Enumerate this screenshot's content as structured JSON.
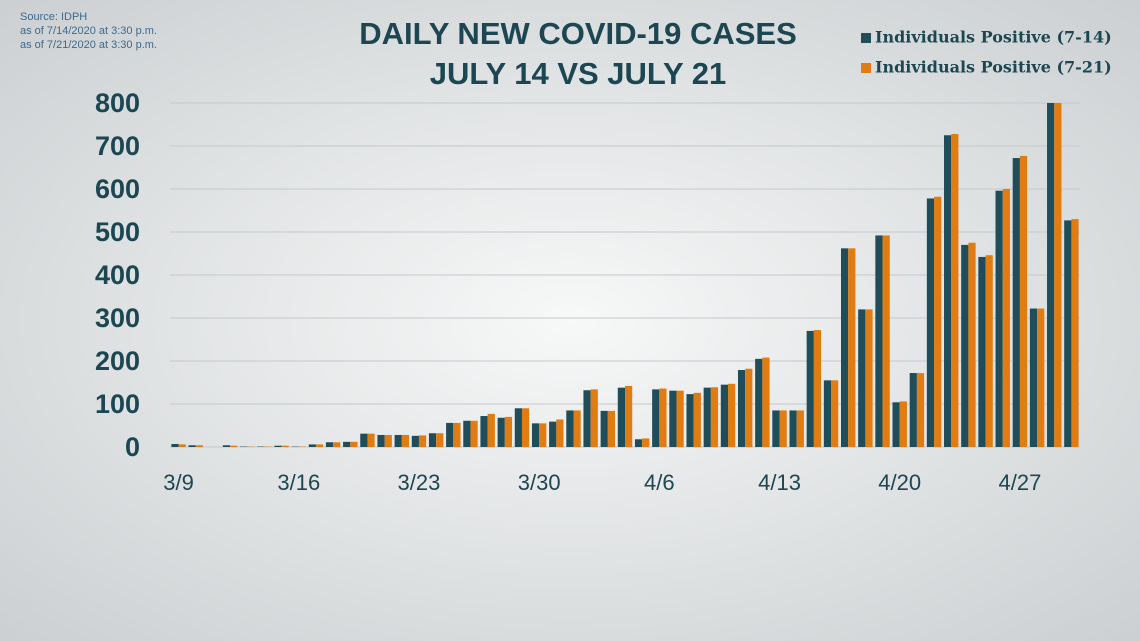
{
  "chart_data": {
    "type": "bar",
    "title": "DAILY NEW COVID-19 CASES",
    "subtitle": "JULY 14 VS JULY 21",
    "source_lines": [
      "Source: IDPH",
      "as of 7/14/2020 at 3:30 p.m.",
      "as of 7/21/2020 at 3:30 p.m."
    ],
    "categories": [
      "3/9",
      null,
      null,
      null,
      null,
      null,
      null,
      "3/16",
      null,
      null,
      null,
      null,
      null,
      null,
      "3/23",
      null,
      null,
      null,
      null,
      null,
      null,
      "3/30",
      null,
      null,
      null,
      null,
      null,
      null,
      "4/6",
      null,
      null,
      null,
      null,
      null,
      null,
      "4/13",
      null,
      null,
      null,
      null,
      null,
      null,
      "4/20",
      null,
      null,
      null,
      null,
      null,
      null,
      "4/27",
      null,
      null,
      null
    ],
    "series": [
      {
        "name": "Individuals Positive (7-14)",
        "color": "#1f4d59",
        "values": [
          7,
          4,
          0,
          4,
          1,
          1,
          3,
          1,
          6,
          11,
          12,
          31,
          28,
          28,
          26,
          32,
          56,
          61,
          72,
          68,
          90,
          55,
          59,
          85,
          132,
          84,
          138,
          18,
          134,
          131,
          123,
          138,
          145,
          179,
          205,
          85,
          85,
          270,
          155,
          462,
          320,
          492,
          104,
          172,
          578,
          725,
          470,
          442,
          596,
          672,
          322,
          800,
          527
        ]
      },
      {
        "name": "Individuals Positive (7-21)",
        "color": "#e07c12",
        "values": [
          6,
          4,
          0,
          3,
          1,
          1,
          3,
          1,
          6,
          11,
          12,
          31,
          28,
          28,
          27,
          32,
          56,
          61,
          77,
          70,
          90,
          55,
          64,
          85,
          134,
          84,
          142,
          20,
          136,
          131,
          126,
          139,
          147,
          182,
          208,
          85,
          85,
          272,
          155,
          462,
          320,
          492,
          106,
          172,
          582,
          728,
          475,
          446,
          600,
          677,
          322,
          800,
          530
        ]
      }
    ],
    "ylim": [
      0,
      800
    ],
    "yticks": [
      0,
      100,
      200,
      300,
      400,
      500,
      600,
      700,
      800
    ],
    "grid": true
  }
}
